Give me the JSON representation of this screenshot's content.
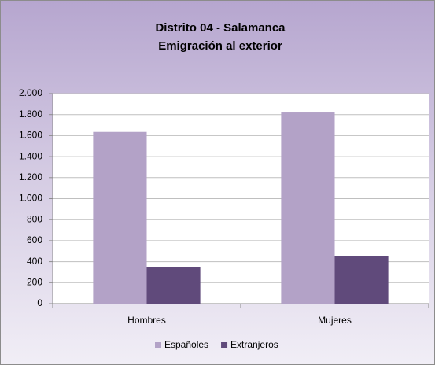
{
  "chart_data": {
    "type": "bar",
    "title": [
      "Distrito 04 - Salamanca",
      "Emigración al exterior"
    ],
    "categories": [
      "Hombres",
      "Mujeres"
    ],
    "series": [
      {
        "name": "Españoles",
        "color": "#b3a2c7",
        "values": [
          1635,
          1820
        ]
      },
      {
        "name": "Extranjeros",
        "color": "#604a7b",
        "values": [
          345,
          450
        ]
      }
    ],
    "ylim": [
      0,
      2000
    ],
    "yticks": [
      0,
      200,
      400,
      600,
      800,
      {
        "value": 1000,
        "label": "1.000"
      },
      {
        "value": 1200,
        "label": "1.200"
      },
      {
        "value": 1400,
        "label": "1.400"
      },
      {
        "value": 1600,
        "label": "1.600"
      },
      {
        "value": 1800,
        "label": "1.800"
      },
      {
        "value": 2000,
        "label": "2.000"
      }
    ],
    "grid": true,
    "legend": "bottom"
  }
}
